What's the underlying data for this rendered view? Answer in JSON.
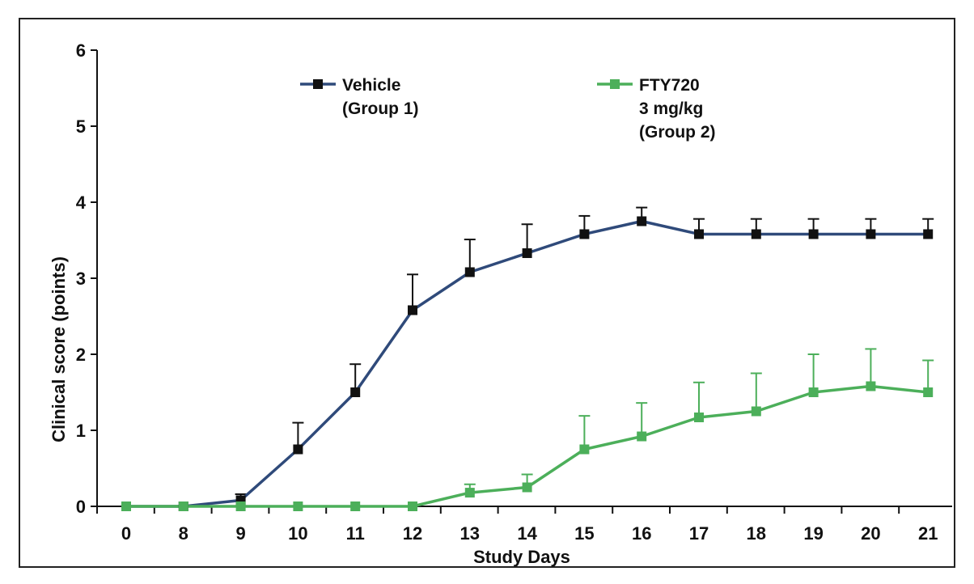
{
  "chart_data": {
    "type": "line",
    "xlabel": "Study Days",
    "ylabel": "Clinical score (points)",
    "categories": [
      "0",
      "8",
      "9",
      "10",
      "11",
      "12",
      "13",
      "14",
      "15",
      "16",
      "17",
      "18",
      "19",
      "20",
      "21"
    ],
    "ylim": [
      0,
      6
    ],
    "yticks": [
      "0",
      "1",
      "2",
      "3",
      "4",
      "5",
      "6"
    ],
    "grid": false,
    "legend_position": "top",
    "series": [
      {
        "name": [
          "Vehicle",
          "(Group 1)"
        ],
        "color": "#2f4a7a",
        "marker_color": "#111111",
        "values": [
          0,
          0,
          0.08,
          0.75,
          1.5,
          2.58,
          3.08,
          3.33,
          3.58,
          3.75,
          3.58,
          3.58,
          3.58,
          3.58,
          3.58
        ],
        "error": [
          0,
          0,
          0.08,
          0.35,
          0.37,
          0.47,
          0.43,
          0.38,
          0.24,
          0.18,
          0.2,
          0.2,
          0.2,
          0.2,
          0.2
        ]
      },
      {
        "name": [
          "FTY720",
          "3 mg/kg",
          "(Group 2)"
        ],
        "color": "#4caf5a",
        "marker_color": "#4caf5a",
        "values": [
          0,
          0,
          0,
          0,
          0,
          0,
          0.18,
          0.25,
          0.75,
          0.92,
          1.17,
          1.25,
          1.5,
          1.58,
          1.5
        ],
        "error": [
          0,
          0,
          0,
          0,
          0,
          0,
          0.11,
          0.17,
          0.44,
          0.44,
          0.46,
          0.5,
          0.5,
          0.49,
          0.42
        ]
      }
    ]
  }
}
